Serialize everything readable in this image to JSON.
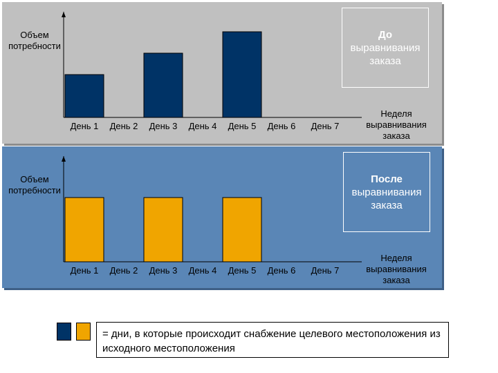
{
  "colors": {
    "top_panel_bg": "#c0c0c0",
    "bottom_panel_bg": "#5a86b6",
    "before_bar": "#003366",
    "after_bar": "#f0a500"
  },
  "chart_data": [
    {
      "type": "bar",
      "ylabel": "Объем потребности",
      "xlabel": "Неделя выравнивания заказа",
      "categories": [
        "День 1",
        "День 2",
        "День 3",
        "День 4",
        "День 5",
        "День 6",
        "День 7"
      ],
      "values": [
        2,
        0,
        3,
        0,
        4,
        0,
        0
      ],
      "ylim": [
        0,
        5
      ],
      "bar_color": "#003366",
      "box_title": "До",
      "box_subtitle": "выравнивания заказа"
    },
    {
      "type": "bar",
      "ylabel": "Объем потребности",
      "xlabel": "Неделя выравнивания заказа",
      "categories": [
        "День 1",
        "День 2",
        "День 3",
        "День 4",
        "День 5",
        "День 6",
        "День 7"
      ],
      "values": [
        3,
        0,
        3,
        0,
        3,
        0,
        0
      ],
      "ylim": [
        0,
        5
      ],
      "bar_color": "#f0a500",
      "box_title": "После",
      "box_subtitle": "выравнивания заказа"
    }
  ],
  "legend": {
    "text": "= дни, в которые происходит снабжение целевого местоположения из исходного местоположения"
  }
}
